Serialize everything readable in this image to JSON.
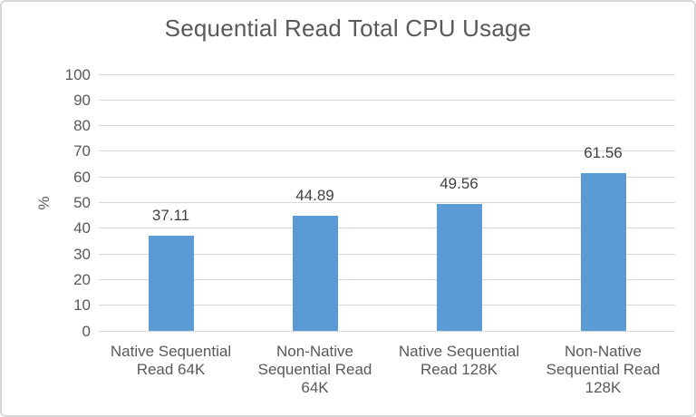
{
  "chart_data": {
    "type": "bar",
    "title": "Sequential Read Total CPU Usage",
    "xlabel": "",
    "ylabel": "%",
    "categories": [
      "Native Sequential Read 64K",
      "Non-Native Sequential Read 64K",
      "Native Sequential Read 128K",
      "Non-Native Sequential Read 128K"
    ],
    "category_label_lines": [
      [
        "Native Sequential",
        "Read 64K"
      ],
      [
        "Non-Native",
        "Sequential Read",
        "64K"
      ],
      [
        "Native Sequential",
        "Read 128K"
      ],
      [
        "Non-Native",
        "Sequential Read",
        "128K"
      ]
    ],
    "values": [
      37.11,
      44.89,
      49.56,
      61.56
    ],
    "data_labels": [
      "37.11",
      "44.89",
      "49.56",
      "61.56"
    ],
    "ylim": [
      0,
      100
    ],
    "yticks": [
      0,
      10,
      20,
      30,
      40,
      50,
      60,
      70,
      80,
      90,
      100
    ],
    "grid": true,
    "legend": "none",
    "colors": {
      "bar": "#5b9bd5",
      "gridline": "#d9d9d9",
      "title_text": "#595959",
      "axis_text": "#595959",
      "data_label_text": "#404040",
      "frame_border": "#d8d8d8",
      "background": "#ffffff"
    }
  }
}
